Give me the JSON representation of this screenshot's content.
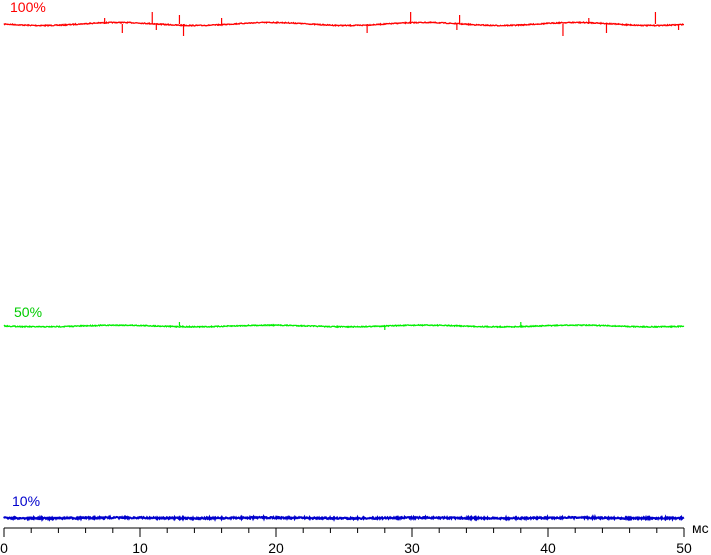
{
  "chart_data": {
    "type": "line",
    "title": "",
    "xlabel": "мс",
    "ylabel": "",
    "xlim": [
      0,
      50
    ],
    "x_ticks": [
      "0",
      "10",
      "20",
      "30",
      "40",
      "50"
    ],
    "x_minor_step": 2,
    "grid": false,
    "series": [
      {
        "name": "100%",
        "color": "#ff0000",
        "level": "top",
        "spikes_ms": [
          7.4,
          8.7,
          10.9,
          11.2,
          12.9,
          13.2,
          16.0,
          26.7,
          29.9,
          33.3,
          33.5,
          41.1,
          43.0,
          44.3,
          47.9,
          49.6
        ]
      },
      {
        "name": "50%",
        "color": "#00ee00",
        "level": "middle",
        "spikes_ms": [
          12.9,
          28.0,
          38.0
        ]
      },
      {
        "name": "10%",
        "color": "#0000cc",
        "level": "bottom",
        "spikes_ms": []
      }
    ]
  }
}
